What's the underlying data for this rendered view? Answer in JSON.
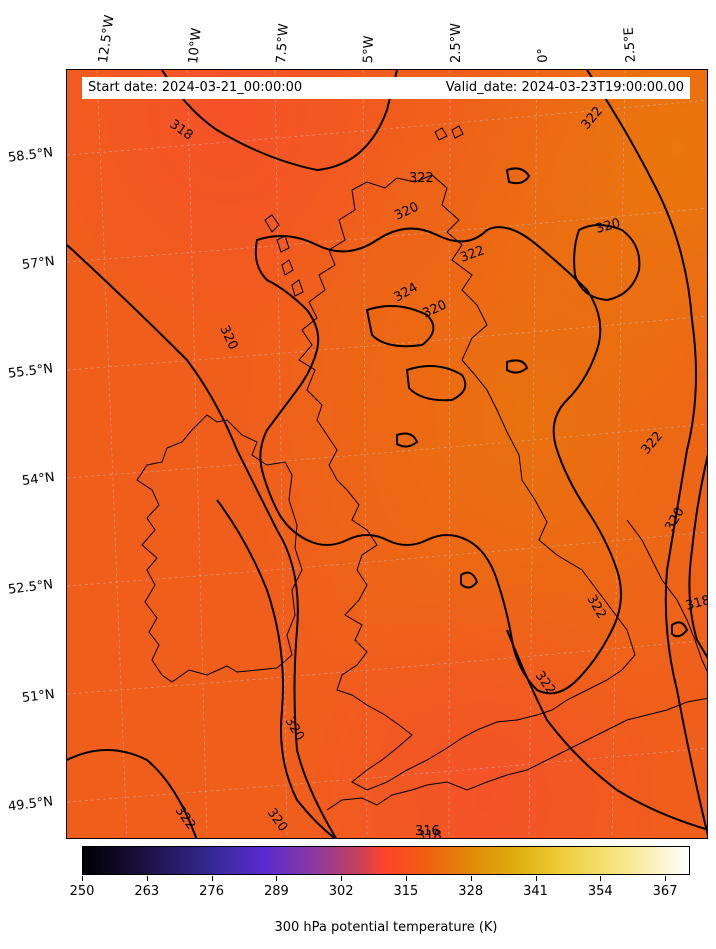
{
  "header": {
    "start_date": "Start date: 2024-03-21_00:00:00",
    "valid_date": "Valid_date: 2024-03-23T19:00:00.00"
  },
  "longitude_labels": [
    "12.5°W",
    "10°W",
    "7.5°W",
    "5°W",
    "2.5°W",
    "0°",
    "2.5°E"
  ],
  "latitude_labels": [
    "58.5°N",
    "57°N",
    "55.5°N",
    "54°N",
    "52.5°N",
    "51°N",
    "49.5°N"
  ],
  "contour_labels": [
    "318",
    "322",
    "322",
    "320",
    "320",
    "322",
    "324",
    "320",
    "320",
    "322",
    "320",
    "322",
    "322",
    "318",
    "320",
    "318",
    "322",
    "320",
    "316"
  ],
  "colorbar": {
    "title": "300 hPa potential temperature (K)",
    "ticks": [
      "250",
      "263",
      "276",
      "289",
      "302",
      "315",
      "328",
      "341",
      "354",
      "367"
    ],
    "range": [
      250,
      372
    ],
    "colormap": "CMRmap"
  },
  "colors": {
    "field_base": "#f05a1e",
    "field_warm": "#e8740c",
    "field_cool": "#f4552a",
    "coast": "#000000",
    "contour": "#000000"
  }
}
